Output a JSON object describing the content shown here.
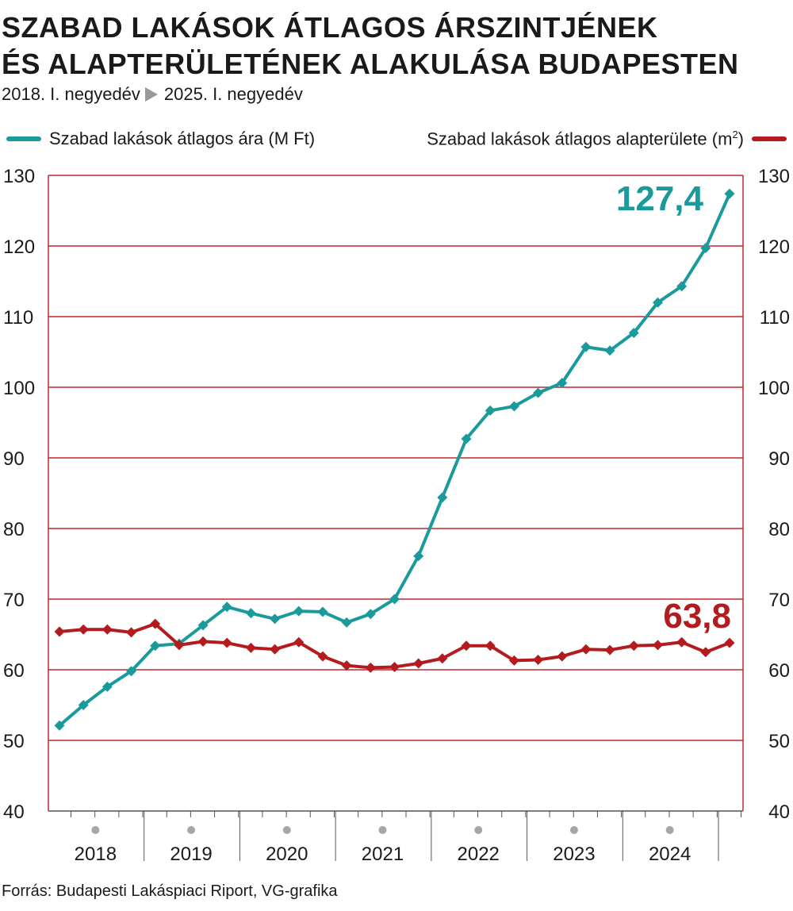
{
  "title_line1": "SZABAD LAKÁSOK ÁTLAGOS ÁRSZINTJÉNEK",
  "title_line2": "ÉS ALAPTERÜLETÉNEK ALAKULÁSA BUDAPESTEN",
  "subtitle_start": "2018. I. negyedév",
  "subtitle_end": "2025. I. negyedév",
  "legend_left": "Szabad lakások átlagos ára (M Ft)",
  "legend_right_text": "Szabad lakások átlagos alapterülete (m",
  "legend_right_sup": "2",
  "legend_right_close": ")",
  "source": "Forrás: Budapesti Lakáspiaci Riport, VG-grafika",
  "colors": {
    "teal": "#1b9a9c",
    "red": "#b31b1e",
    "grid": "#c0282c",
    "year_dot": "#a6a6a6"
  },
  "chart_data": {
    "type": "line",
    "ylim": [
      40,
      130
    ],
    "yticks": [
      "40",
      "50",
      "60",
      "70",
      "80",
      "90",
      "100",
      "110",
      "120",
      "130"
    ],
    "years": [
      "2018",
      "2019",
      "2020",
      "2021",
      "2022",
      "2023",
      "2024"
    ],
    "series": [
      {
        "name": "Szabad lakások átlagos ára (M Ft)",
        "color": "#1b9a9c",
        "values": [
          52.1,
          55.0,
          57.6,
          59.8,
          63.4,
          63.7,
          66.3,
          68.9,
          68.0,
          67.2,
          68.3,
          68.2,
          66.7,
          67.9,
          70.0,
          76.1,
          84.4,
          92.7,
          96.7,
          97.3,
          99.2,
          100.6,
          105.7,
          105.2,
          107.7,
          112.0,
          114.3,
          119.7,
          127.4
        ],
        "end_label": "127,4"
      },
      {
        "name": "Szabad lakások átlagos alapterülete (m2)",
        "color": "#b31b1e",
        "values": [
          65.4,
          65.7,
          65.7,
          65.3,
          66.5,
          63.5,
          64.0,
          63.8,
          63.1,
          62.9,
          63.9,
          61.9,
          60.6,
          60.3,
          60.4,
          60.9,
          61.6,
          63.4,
          63.4,
          61.3,
          61.4,
          61.9,
          62.9,
          62.8,
          63.4,
          63.5,
          63.9,
          62.5,
          63.8
        ],
        "end_label": "63,8"
      }
    ]
  }
}
